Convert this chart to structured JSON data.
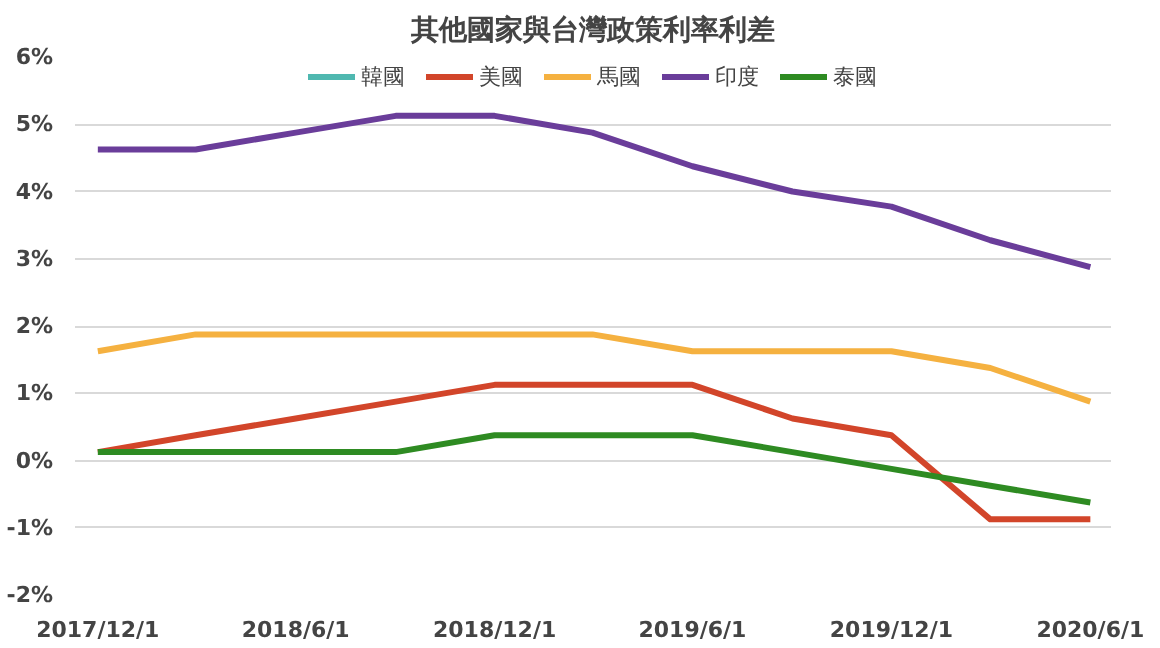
{
  "chart_data": {
    "type": "line",
    "title": "其他國家與台灣政策利率利差",
    "x": [
      "2017-12-01",
      "2018-03-01",
      "2018-06-01",
      "2018-09-01",
      "2018-12-01",
      "2019-03-01",
      "2019-06-01",
      "2019-09-01",
      "2019-12-01",
      "2020-03-01",
      "2020-06-01"
    ],
    "series": [
      {
        "name": "韓國",
        "color": "#4fb8b0",
        "values": [
          null,
          null,
          null,
          null,
          null,
          null,
          null,
          null,
          null,
          null,
          null
        ]
      },
      {
        "name": "美國",
        "color": "#d2452a",
        "values": [
          0.125,
          0.375,
          0.625,
          0.875,
          1.125,
          1.125,
          1.125,
          0.625,
          0.375,
          -0.875,
          -0.875
        ]
      },
      {
        "name": "馬國",
        "color": "#f5b140",
        "values": [
          1.625,
          1.875,
          1.875,
          1.875,
          1.875,
          1.875,
          1.625,
          1.625,
          1.625,
          1.375,
          0.875
        ]
      },
      {
        "name": "印度",
        "color": "#6a3d9a",
        "values": [
          4.625,
          4.625,
          4.875,
          5.125,
          5.125,
          4.875,
          4.375,
          4.0,
          3.775,
          3.275,
          2.875
        ]
      },
      {
        "name": "泰國",
        "color": "#2e8b22",
        "values": [
          0.125,
          0.125,
          0.125,
          0.125,
          0.375,
          0.375,
          0.375,
          0.125,
          -0.125,
          -0.375,
          -0.625
        ]
      }
    ],
    "xlim": [
      "2017-11-10",
      "2020-06-20"
    ],
    "xticks": [
      {
        "value": "2017-12-01",
        "label": "2017/12/1"
      },
      {
        "value": "2018-06-01",
        "label": "2018/6/1"
      },
      {
        "value": "2018-12-01",
        "label": "2018/12/1"
      },
      {
        "value": "2019-06-01",
        "label": "2019/6/1"
      },
      {
        "value": "2019-12-01",
        "label": "2019/12/1"
      },
      {
        "value": "2020-06-01",
        "label": "2020/6/1"
      }
    ],
    "ylim": [
      -2,
      6
    ],
    "yticks": [
      {
        "value": -2,
        "label": "-2%"
      },
      {
        "value": -1,
        "label": "-1%"
      },
      {
        "value": 0,
        "label": "0%"
      },
      {
        "value": 1,
        "label": "1%"
      },
      {
        "value": 2,
        "label": "2%"
      },
      {
        "value": 3,
        "label": "3%"
      },
      {
        "value": 4,
        "label": "4%"
      },
      {
        "value": 5,
        "label": "5%"
      },
      {
        "value": 6,
        "label": "6%"
      }
    ],
    "grid": "y",
    "legend": "top",
    "marker": "none",
    "line_style": "solid"
  }
}
